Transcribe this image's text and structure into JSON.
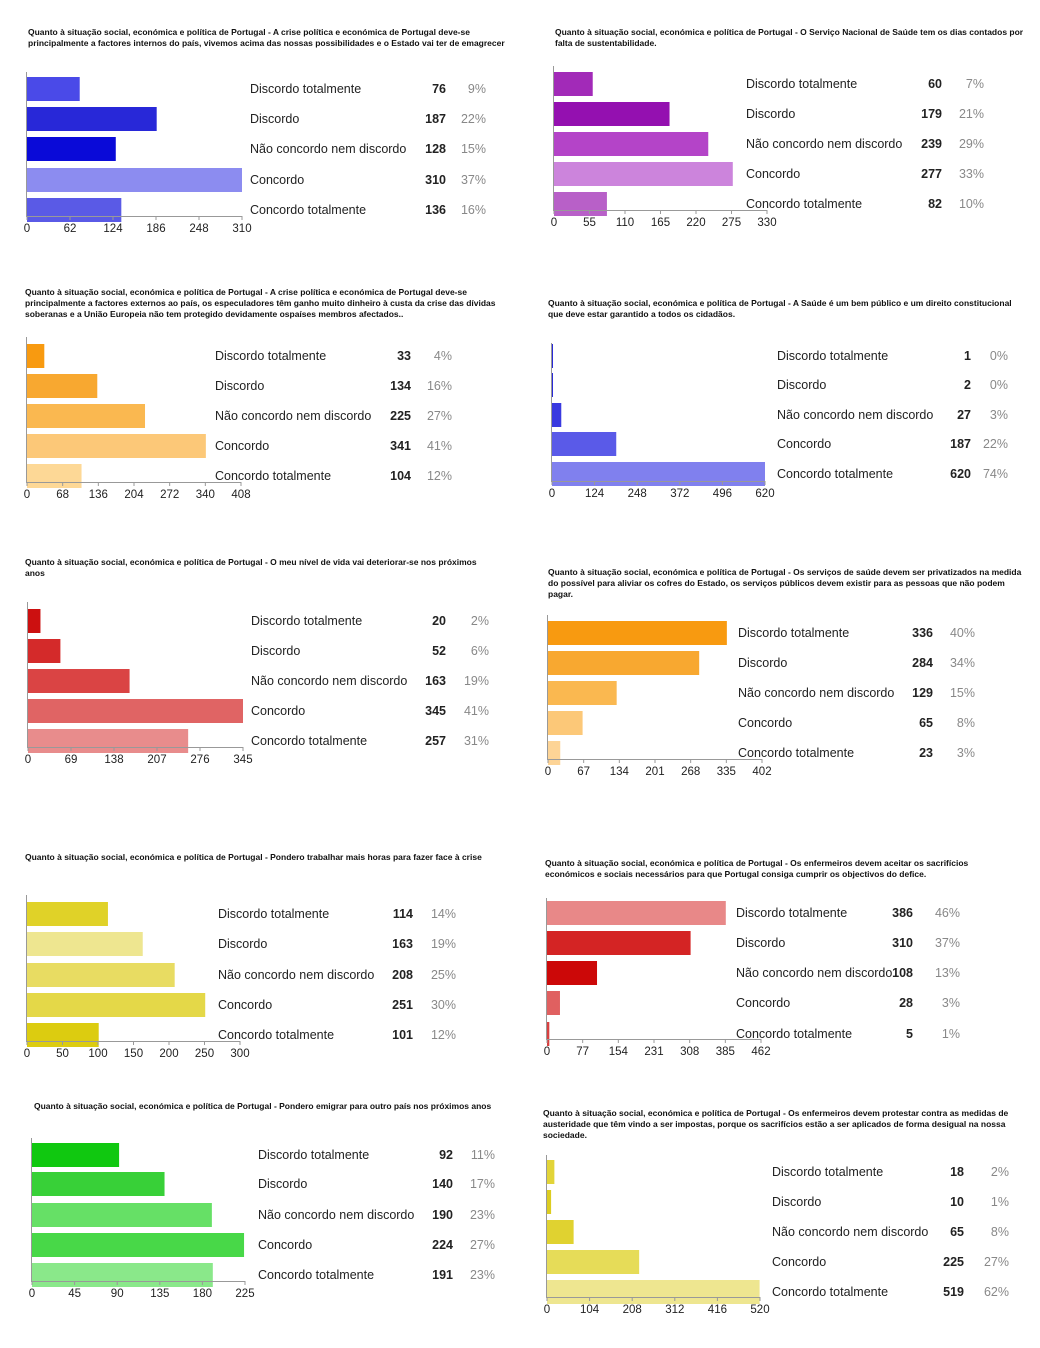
{
  "chart_data": [
    {
      "type": "bar",
      "title": "Quanto à situação social, económica e política de Portugal - A crise política e económica de Portugal deve-se principalmente a factores internos do país, vivemos acima das nossas possibilidades e o Estado vai ter de emagrecer",
      "categories": [
        "Discordo totalmente",
        "Discordo",
        "Não concordo nem discordo",
        "Concordo",
        "Concordo totalmente"
      ],
      "values": [
        76,
        187,
        128,
        310,
        136
      ],
      "percentages": [
        "9%",
        "22%",
        "15%",
        "37%",
        "16%"
      ],
      "xticks": [
        "0",
        "62",
        "124",
        "186",
        "248",
        "310"
      ],
      "xlim": [
        0,
        310
      ],
      "colors": [
        "#4a4ae8",
        "#2828d8",
        "#0a0ad8",
        "#8c8cf0",
        "#5a5ae6"
      ]
    },
    {
      "type": "bar",
      "title": "Quanto à situação social, económica e política de Portugal - O Serviço Nacional de Saúde tem os dias contados por falta de sustentabilidade.",
      "categories": [
        "Discordo totalmente",
        "Discordo",
        "Não concordo nem discordo",
        "Concordo",
        "Concordo totalmente"
      ],
      "values": [
        60,
        179,
        239,
        277,
        82
      ],
      "percentages": [
        "7%",
        "21%",
        "29%",
        "33%",
        "10%"
      ],
      "xticks": [
        "0",
        "55",
        "110",
        "165",
        "220",
        "275",
        "330"
      ],
      "xlim": [
        0,
        330
      ],
      "colors": [
        "#a22ab8",
        "#9410b0",
        "#b444c8",
        "#cc84dc",
        "#b860c8"
      ]
    },
    {
      "type": "bar",
      "title": "Quanto à situação social, económica e política de Portugal - A crise política e económica de Portugal deve-se principalmente a factores externos ao país, os especuladores têm ganho muito dinheiro à custa da crise das dívidas soberanas e a União Europeia não tem protegido devidamente ospaíses membros afectados..",
      "categories": [
        "Discordo totalmente",
        "Discordo",
        "Não concordo nem discordo",
        "Concordo",
        "Concordo totalmente"
      ],
      "values": [
        33,
        134,
        225,
        341,
        104
      ],
      "percentages": [
        "4%",
        "16%",
        "27%",
        "41%",
        "12%"
      ],
      "xticks": [
        "0",
        "68",
        "136",
        "204",
        "272",
        "340",
        "408"
      ],
      "xlim": [
        0,
        408
      ],
      "colors": [
        "#f89a10",
        "#f8a830",
        "#fab850",
        "#fcc878",
        "#fdd896"
      ]
    },
    {
      "type": "bar",
      "title": "Quanto à situação social, económica e política de Portugal - A Saúde é um bem público e um direito constitucional que deve estar garantido a todos os cidadãos.",
      "categories": [
        "Discordo totalmente",
        "Discordo",
        "Não concordo nem discordo",
        "Concordo",
        "Concordo totalmente"
      ],
      "values": [
        1,
        2,
        27,
        187,
        620
      ],
      "percentages": [
        "0%",
        "0%",
        "3%",
        "22%",
        "74%"
      ],
      "xticks": [
        "0",
        "124",
        "248",
        "372",
        "496",
        "620"
      ],
      "xlim": [
        0,
        620
      ],
      "colors": [
        "#2a2ad8",
        "#2a2ad8",
        "#3a3ae0",
        "#5a5ae8",
        "#8080ee"
      ]
    },
    {
      "type": "bar",
      "title": "Quanto à situação social, económica e política de Portugal - O meu nível de vida vai deteriorar-se nos próximos anos",
      "categories": [
        "Discordo totalmente",
        "Discordo",
        "Não concordo nem discordo",
        "Concordo",
        "Concordo totalmente"
      ],
      "values": [
        20,
        52,
        163,
        345,
        257
      ],
      "percentages": [
        "2%",
        "6%",
        "19%",
        "41%",
        "31%"
      ],
      "xticks": [
        "0",
        "69",
        "138",
        "207",
        "276",
        "345"
      ],
      "xlim": [
        0,
        345
      ],
      "colors": [
        "#cc1010",
        "#d42a2a",
        "#da4444",
        "#e06464",
        "#e88c8c"
      ]
    },
    {
      "type": "bar",
      "title": "Quanto à situação social, económica e política de Portugal - Os serviços de saúde devem ser privatizados na medida do possível para aliviar os cofres do Estado, os serviços públicos devem existir para as pessoas que não podem pagar.",
      "categories": [
        "Discordo totalmente",
        "Discordo",
        "Não concordo nem discordo",
        "Concordo",
        "Concordo totalmente"
      ],
      "values": [
        336,
        284,
        129,
        65,
        23
      ],
      "percentages": [
        "40%",
        "34%",
        "15%",
        "8%",
        "3%"
      ],
      "xticks": [
        "0",
        "67",
        "134",
        "201",
        "268",
        "335",
        "402"
      ],
      "xlim": [
        0,
        402
      ],
      "colors": [
        "#f89a10",
        "#f8a830",
        "#fab850",
        "#fcc878",
        "#fdd496"
      ]
    },
    {
      "type": "bar",
      "title": "Quanto à situação social, económica e política de Portugal - Pondero trabalhar mais horas para fazer face à crise",
      "categories": [
        "Discordo totalmente",
        "Discordo",
        "Não concordo nem discordo",
        "Concordo",
        "Concordo totalmente"
      ],
      "values": [
        114,
        163,
        208,
        251,
        101
      ],
      "percentages": [
        "14%",
        "19%",
        "25%",
        "30%",
        "12%"
      ],
      "xticks": [
        "0",
        "50",
        "100",
        "150",
        "200",
        "250",
        "300"
      ],
      "xlim": [
        0,
        300
      ],
      "colors": [
        "#e0d228",
        "#eee690",
        "#e8dc62",
        "#e4d848",
        "#dccc10"
      ]
    },
    {
      "type": "bar",
      "title": "Quanto à situação social, económica e política de Portugal - Os enfermeiros devem aceitar os sacrifícios económicos e sociais necessários para que Portugal consiga cumprir os objectivos do defice.",
      "categories": [
        "Discordo totalmente",
        "Discordo",
        "Não concordo nem discordo",
        "Concordo",
        "Concordo totalmente"
      ],
      "values": [
        386,
        310,
        108,
        28,
        5
      ],
      "percentages": [
        "46%",
        "37%",
        "13%",
        "3%",
        "1%"
      ],
      "xticks": [
        "0",
        "77",
        "154",
        "231",
        "308",
        "385",
        "462"
      ],
      "xlim": [
        0,
        462
      ],
      "colors": [
        "#e88888",
        "#d42424",
        "#cc0808",
        "#e06060",
        "#d84040"
      ]
    },
    {
      "type": "bar",
      "title": "Quanto à situação social, económica e política de Portugal - Pondero emigrar para outro país nos próximos anos",
      "categories": [
        "Discordo totalmente",
        "Discordo",
        "Não concordo nem discordo",
        "Concordo",
        "Concordo totalmente"
      ],
      "values": [
        92,
        140,
        190,
        224,
        191
      ],
      "percentages": [
        "11%",
        "17%",
        "23%",
        "27%",
        "23%"
      ],
      "xticks": [
        "0",
        "45",
        "90",
        "135",
        "180",
        "225"
      ],
      "xlim": [
        0,
        225
      ],
      "colors": [
        "#10c810",
        "#38d038",
        "#66e066",
        "#48d848",
        "#8ae88a"
      ]
    },
    {
      "type": "bar",
      "title": "Quanto à situação social, económica e política de Portugal - Os enfermeiros devem protestar contra as medidas de austeridade que têm vindo a ser impostas, porque os sacrifícios estão a ser aplicados de forma desigual na nossa sociedade.",
      "categories": [
        "Discordo totalmente",
        "Discordo",
        "Não concordo nem discordo",
        "Concordo",
        "Concordo totalmente"
      ],
      "values": [
        18,
        10,
        65,
        225,
        519
      ],
      "percentages": [
        "2%",
        "1%",
        "8%",
        "27%",
        "62%"
      ],
      "xticks": [
        "0",
        "104",
        "208",
        "312",
        "416",
        "520"
      ],
      "xlim": [
        0,
        520
      ],
      "colors": [
        "#e2d438",
        "#dccc20",
        "#e0d230",
        "#e6dc58",
        "#eee690"
      ]
    }
  ]
}
